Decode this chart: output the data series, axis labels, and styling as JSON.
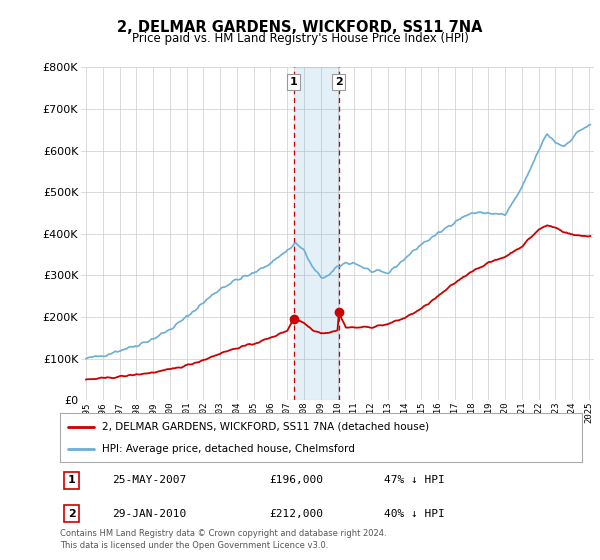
{
  "title": "2, DELMAR GARDENS, WICKFORD, SS11 7NA",
  "subtitle": "Price paid vs. HM Land Registry's House Price Index (HPI)",
  "legend_line1": "2, DELMAR GARDENS, WICKFORD, SS11 7NA (detached house)",
  "legend_line2": "HPI: Average price, detached house, Chelmsford",
  "footnote1": "Contains HM Land Registry data © Crown copyright and database right 2024.",
  "footnote2": "This data is licensed under the Open Government Licence v3.0.",
  "sale1_date": "25-MAY-2007",
  "sale1_price": "£196,000",
  "sale1_hpi": "47% ↓ HPI",
  "sale1_year": 2007.38,
  "sale1_value": 196000,
  "sale2_date": "29-JAN-2010",
  "sale2_price": "£212,000",
  "sale2_hpi": "40% ↓ HPI",
  "sale2_year": 2010.08,
  "sale2_value": 212000,
  "hpi_color": "#6baed6",
  "price_color": "#cc0000",
  "ylim_min": 0,
  "ylim_max": 800000,
  "background_color": "#ffffff",
  "grid_color": "#cccccc",
  "xtick_years": [
    1995,
    1996,
    1997,
    1998,
    1999,
    2000,
    2001,
    2002,
    2003,
    2004,
    2005,
    2006,
    2007,
    2008,
    2009,
    2010,
    2011,
    2012,
    2013,
    2014,
    2015,
    2016,
    2017,
    2018,
    2019,
    2020,
    2021,
    2022,
    2023,
    2024,
    2025
  ]
}
